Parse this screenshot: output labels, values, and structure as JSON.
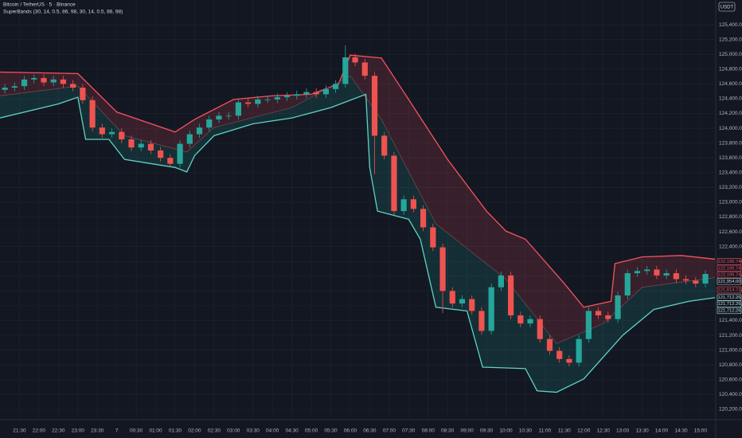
{
  "chart_data": {
    "type": "candlestick",
    "title": "Bitcoin / TetherUS · 5 · Binance",
    "subtitle": "SuperBands (30, 14, 0.5, 86, 98, 30, 14, 0.5, 86, 98)",
    "currency": "USDT",
    "up_color": "#26a69a",
    "down_color": "#ef5350",
    "grid": true,
    "xlim": [
      21.0,
      39.37
    ],
    "ylim": [
      120070,
      125735
    ],
    "xticks": [
      {
        "value": 21.5,
        "label": "21:30"
      },
      {
        "value": 22,
        "label": "22:00"
      },
      {
        "value": 22.5,
        "label": "22:30"
      },
      {
        "value": 23,
        "label": "23:00"
      },
      {
        "value": 23.5,
        "label": "23:30"
      },
      {
        "value": 24,
        "label": "7"
      },
      {
        "value": 24.5,
        "label": "00:30"
      },
      {
        "value": 25,
        "label": "01:00"
      },
      {
        "value": 25.5,
        "label": "01:30"
      },
      {
        "value": 26,
        "label": "02:00"
      },
      {
        "value": 26.5,
        "label": "02:30"
      },
      {
        "value": 27,
        "label": "03:00"
      },
      {
        "value": 27.5,
        "label": "03:30"
      },
      {
        "value": 28,
        "label": "04:00"
      },
      {
        "value": 28.5,
        "label": "04:30"
      },
      {
        "value": 29,
        "label": "05:00"
      },
      {
        "value": 29.5,
        "label": "05:30"
      },
      {
        "value": 30,
        "label": "06:00"
      },
      {
        "value": 30.5,
        "label": "06:30"
      },
      {
        "value": 31,
        "label": "07:00"
      },
      {
        "value": 31.5,
        "label": "07:30"
      },
      {
        "value": 32,
        "label": "08:00"
      },
      {
        "value": 32.5,
        "label": "08:30"
      },
      {
        "value": 33,
        "label": "09:00"
      },
      {
        "value": 33.5,
        "label": "09:30"
      },
      {
        "value": 34,
        "label": "10:00"
      },
      {
        "value": 34.5,
        "label": "10:30"
      },
      {
        "value": 35,
        "label": "11:00"
      },
      {
        "value": 35.5,
        "label": "11:30"
      },
      {
        "value": 36,
        "label": "12:00"
      },
      {
        "value": 36.5,
        "label": "12:30"
      },
      {
        "value": 37,
        "label": "13:00"
      },
      {
        "value": 37.5,
        "label": "13:30"
      },
      {
        "value": 38,
        "label": "14:00"
      },
      {
        "value": 38.5,
        "label": "14:30"
      },
      {
        "value": 39,
        "label": "15:00"
      }
    ],
    "yticks": [
      {
        "value": 125400,
        "label": "125,400.00"
      },
      {
        "value": 125200,
        "label": "125,200.00"
      },
      {
        "value": 125000,
        "label": "125,000.00"
      },
      {
        "value": 124800,
        "label": "124,800.00"
      },
      {
        "value": 124600,
        "label": "124,600.00"
      },
      {
        "value": 124400,
        "label": "124,400.00"
      },
      {
        "value": 124200,
        "label": "124,200.00"
      },
      {
        "value": 124000,
        "label": "124,000.00"
      },
      {
        "value": 123800,
        "label": "123,800.00"
      },
      {
        "value": 123600,
        "label": "123,600.00"
      },
      {
        "value": 123400,
        "label": "123,400.00"
      },
      {
        "value": 123200,
        "label": "123,200.00"
      },
      {
        "value": 123000,
        "label": "123,000.00"
      },
      {
        "value": 122800,
        "label": "122,800.00"
      },
      {
        "value": 122600,
        "label": "122,600.00"
      },
      {
        "value": 122400,
        "label": "122,400.00"
      },
      {
        "value": 122200,
        "label": "122,200.00"
      },
      {
        "value": 122000,
        "label": "122,000.00"
      },
      {
        "value": 121800,
        "label": "121,800.00"
      },
      {
        "value": 121600,
        "label": "121,600.00"
      },
      {
        "value": 121400,
        "label": "121,400.00"
      },
      {
        "value": 121200,
        "label": "121,200.00"
      },
      {
        "value": 121000,
        "label": "121,000.00"
      },
      {
        "value": 120800,
        "label": "120,800.00"
      },
      {
        "value": 120600,
        "label": "120,600.00"
      },
      {
        "value": 120400,
        "label": "120,400.00"
      },
      {
        "value": 120200,
        "label": "120,200.00"
      }
    ],
    "x": [
      21.125,
      21.375,
      21.625,
      21.875,
      22.125,
      22.375,
      22.625,
      22.875,
      23.125,
      23.375,
      23.625,
      23.875,
      24.125,
      24.375,
      24.625,
      24.875,
      25.125,
      25.375,
      25.625,
      25.875,
      26.125,
      26.375,
      26.625,
      26.875,
      27.125,
      27.375,
      27.625,
      27.875,
      28.125,
      28.375,
      28.625,
      28.875,
      29.125,
      29.375,
      29.625,
      29.875,
      30.125,
      30.375,
      30.625,
      30.875,
      31.125,
      31.375,
      31.625,
      31.875,
      32.125,
      32.375,
      32.625,
      32.875,
      33.125,
      33.375,
      33.625,
      33.875,
      34.125,
      34.375,
      34.625,
      34.875,
      35.125,
      35.375,
      35.625,
      35.875,
      36.125,
      36.375,
      36.625,
      36.875,
      37.125,
      37.375,
      37.625,
      37.875,
      38.125,
      38.375,
      38.625,
      38.875,
      39.125
    ],
    "open": [
      124520,
      124550,
      124570,
      124660,
      124680,
      124620,
      124660,
      124600,
      124550,
      124380,
      124010,
      123920,
      123950,
      123850,
      123740,
      123790,
      123700,
      123600,
      123520,
      123790,
      123920,
      124010,
      124120,
      124170,
      124170,
      124350,
      124330,
      124390,
      124390,
      124420,
      124440,
      124460,
      124490,
      124460,
      124530,
      124600,
      124960,
      124890,
      124710,
      123900,
      123630,
      122880,
      123040,
      122910,
      122660,
      122390,
      121800,
      121630,
      121690,
      121530,
      121260,
      121850,
      122010,
      121470,
      121360,
      121420,
      121150,
      120990,
      120880,
      120830,
      121150,
      121530,
      121470,
      121420,
      121740,
      122040,
      122070,
      122090,
      122010,
      122040,
      121960,
      121940,
      121900
    ],
    "high": [
      124600,
      124620,
      124710,
      124730,
      124730,
      124710,
      124710,
      124650,
      124600,
      124430,
      124060,
      124000,
      124000,
      123900,
      123840,
      123840,
      123750,
      123650,
      123840,
      123970,
      124060,
      124170,
      124220,
      124220,
      124400,
      124400,
      124440,
      124440,
      124470,
      124490,
      124510,
      124540,
      124540,
      124580,
      124650,
      125120,
      125010,
      124940,
      124760,
      123950,
      123680,
      123090,
      123090,
      122960,
      122710,
      122440,
      121850,
      121740,
      121740,
      121580,
      121900,
      122060,
      122060,
      121520,
      121470,
      121470,
      121200,
      121040,
      120930,
      121200,
      121580,
      121580,
      121520,
      121790,
      122090,
      122120,
      122140,
      122140,
      122090,
      122090,
      122010,
      121990,
      122080
    ],
    "low": [
      124470,
      124500,
      124520,
      124610,
      124570,
      124570,
      124550,
      124500,
      124330,
      123960,
      123870,
      123870,
      123800,
      123690,
      123690,
      123650,
      123550,
      123470,
      123470,
      123740,
      123870,
      123960,
      124070,
      124120,
      124120,
      124280,
      124280,
      124340,
      124340,
      124370,
      124390,
      124410,
      124410,
      124410,
      124480,
      124550,
      124840,
      124660,
      123380,
      123580,
      122830,
      122830,
      122860,
      122610,
      122340,
      121500,
      121580,
      121580,
      121480,
      121210,
      121210,
      121800,
      121420,
      121310,
      121310,
      121100,
      120940,
      120830,
      120780,
      120780,
      121100,
      121420,
      121370,
      121370,
      121690,
      121990,
      122020,
      121960,
      121960,
      121910,
      121890,
      121850,
      121850
    ],
    "close": [
      124550,
      124570,
      124660,
      124680,
      124620,
      124660,
      124600,
      124550,
      124380,
      124010,
      123920,
      123950,
      123850,
      123740,
      123790,
      123700,
      123600,
      123520,
      123790,
      123920,
      124010,
      124120,
      124170,
      124170,
      124350,
      124330,
      124390,
      124390,
      124420,
      124440,
      124460,
      124490,
      124460,
      124530,
      124600,
      124960,
      124890,
      124710,
      123900,
      123630,
      122880,
      123040,
      122910,
      122660,
      122390,
      121800,
      121630,
      121690,
      121530,
      121260,
      121850,
      122010,
      121470,
      121360,
      121420,
      121150,
      120990,
      120880,
      120830,
      121150,
      121530,
      121470,
      121420,
      121740,
      122040,
      122070,
      122090,
      122010,
      122040,
      121960,
      121940,
      121900,
      122030
    ],
    "series": [
      {
        "color": "#f7525f",
        "x": [
          21.0,
          23.0,
          24.0,
          25.5,
          26.0,
          27.0,
          28.0,
          29.0,
          29.7,
          30.0,
          30.8,
          31.5,
          32.5,
          33.5,
          34.0,
          34.5,
          35.5,
          36.0,
          36.7,
          36.8,
          37.5,
          38.5,
          39.37
        ],
        "values": [
          124760,
          124740,
          124220,
          123950,
          124120,
          124390,
          124440,
          124460,
          124600,
          124990,
          124950,
          124390,
          123580,
          122880,
          122610,
          122500,
          121900,
          121580,
          121660,
          122170,
          122260,
          122280,
          122230
        ]
      },
      {
        "color": "#7a4a55",
        "x": [
          21.0,
          23.0,
          24.2,
          25.8,
          26.5,
          28.5,
          30.0,
          30.8,
          32.2,
          34.0,
          35.3,
          36.5,
          37.5,
          39.37
        ],
        "values": [
          124440,
          124570,
          123900,
          123680,
          124010,
          124280,
          124710,
          124120,
          122710,
          121960,
          121090,
          121360,
          121850,
          121980
        ]
      },
      {
        "color": "#5ed3c5",
        "x": [
          21.0,
          22.5,
          23.0,
          23.2,
          23.8,
          24.2,
          25.5,
          25.8,
          26.0,
          26.5,
          27.5,
          28.5,
          29.5,
          30.4,
          30.5,
          30.7,
          31.5,
          31.8,
          32.2,
          33.0,
          33.4,
          34.5,
          34.8,
          35.3,
          36.0,
          37.0,
          37.8,
          38.7,
          39.37
        ],
        "values": [
          124140,
          124330,
          124420,
          123850,
          123850,
          123580,
          123470,
          123410,
          123630,
          123900,
          124060,
          124140,
          124280,
          124460,
          123470,
          122880,
          122770,
          122500,
          121580,
          121530,
          120770,
          120750,
          120450,
          120430,
          120610,
          121200,
          121550,
          121660,
          121710
        ]
      }
    ],
    "band_fills": [
      "#f7525f",
      "#26a69a"
    ],
    "price_labels": [
      {
        "value": 122195.74,
        "label": "122,195.74",
        "color": "#f7525f"
      },
      {
        "value": 122195.74,
        "label": "122,195.74",
        "color": "#f7525f"
      },
      {
        "value": 122195.74,
        "label": "122,195.74",
        "color": "#f7525f"
      },
      {
        "value": 121954.0,
        "label": "121,954.00",
        "color": "#d1d4dc"
      },
      {
        "value": 121814.72,
        "label": "121,814.72",
        "color": "#ef5350"
      },
      {
        "value": 121712.26,
        "label": "121,712.26",
        "color": "#b2dfdb"
      },
      {
        "value": 121712.26,
        "label": "121,712.26",
        "color": "#b2dfdb"
      },
      {
        "value": 121712.26,
        "label": "121,712.26",
        "color": "#b2dfdb"
      }
    ]
  }
}
